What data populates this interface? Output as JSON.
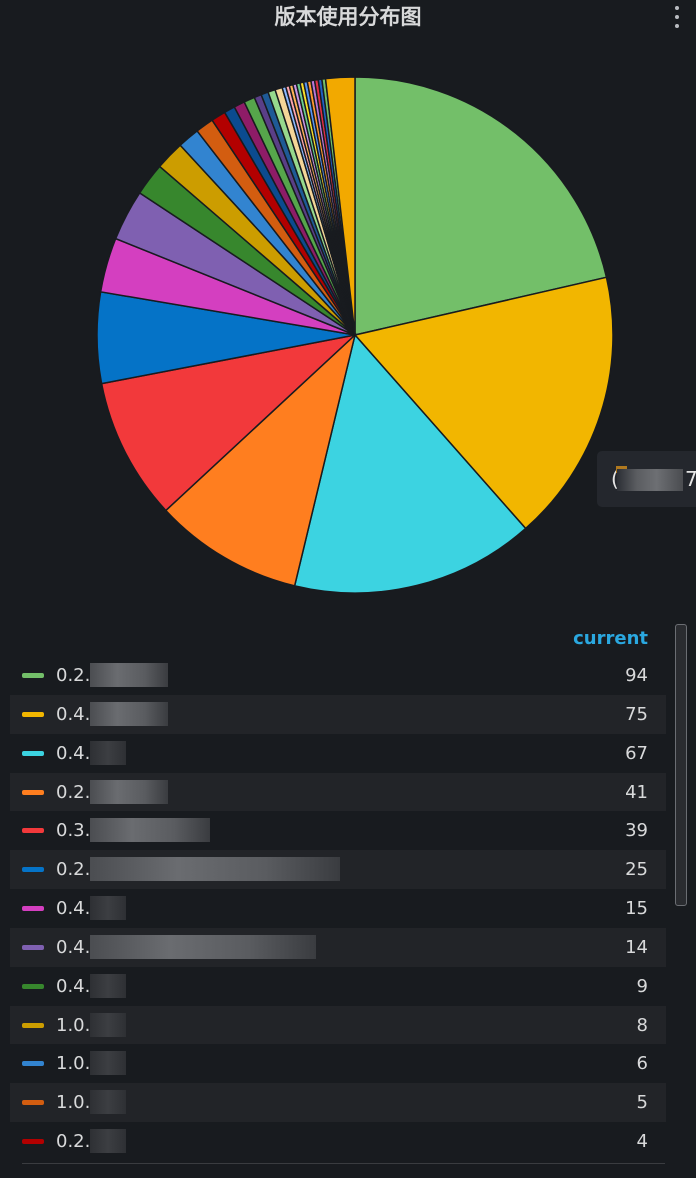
{
  "panel": {
    "title": "版本使用分布图",
    "menu_icon": "vertical-dots-icon"
  },
  "tooltip": {
    "text_start": "(",
    "text_end": "7"
  },
  "legend": {
    "column_header": "current",
    "items": [
      {
        "label": "0.2.",
        "value": "94",
        "color": "#73bf69"
      },
      {
        "label": "0.4.",
        "value": "75",
        "color": "#f2b600"
      },
      {
        "label": "0.4.",
        "value": "67",
        "color": "#3cd3e1"
      },
      {
        "label": "0.2.",
        "value": "41",
        "color": "#ff7e1f"
      },
      {
        "label": "0.3.",
        "value": "39",
        "color": "#f2393b"
      },
      {
        "label": "0.2.",
        "value": "25",
        "color": "#0573c7"
      },
      {
        "label": "0.4.",
        "value": "15",
        "color": "#d43fc0"
      },
      {
        "label": "0.4.",
        "value": "14",
        "color": "#7f60b1"
      },
      {
        "label": "0.4.",
        "value": "9",
        "color": "#37872d"
      },
      {
        "label": "1.0.",
        "value": "8",
        "color": "#cc9d00"
      },
      {
        "label": "1.0.",
        "value": "6",
        "color": "#3284d0"
      },
      {
        "label": "1.0.",
        "value": "5",
        "color": "#d35d10"
      },
      {
        "label": "0.2.",
        "value": "4",
        "color": "#b30000"
      }
    ]
  },
  "chart_data": {
    "type": "pie",
    "title": "版本使用分布图",
    "slices": [
      {
        "label": "0.2.",
        "value": 94,
        "color": "#73bf69"
      },
      {
        "label": "0.4.",
        "value": 75,
        "color": "#f2b600"
      },
      {
        "label": "0.4.",
        "value": 67,
        "color": "#3cd3e1"
      },
      {
        "label": "0.2.",
        "value": 41,
        "color": "#ff7e1f"
      },
      {
        "label": "0.3.",
        "value": 39,
        "color": "#f2393b"
      },
      {
        "label": "0.2.",
        "value": 25,
        "color": "#0573c7"
      },
      {
        "label": "0.4.",
        "value": 15,
        "color": "#d43fc0"
      },
      {
        "label": "0.4.",
        "value": 14,
        "color": "#7f60b1"
      },
      {
        "label": "0.4.",
        "value": 9,
        "color": "#37872d"
      },
      {
        "label": "1.0.",
        "value": 8,
        "color": "#cc9d00"
      },
      {
        "label": "1.0.",
        "value": 6,
        "color": "#3284d0"
      },
      {
        "label": "1.0.",
        "value": 5,
        "color": "#d35d10"
      },
      {
        "label": "0.2.",
        "value": 4,
        "color": "#b30000"
      },
      {
        "value": 3,
        "color": "#0b4b8f"
      },
      {
        "value": 3,
        "color": "#8e1c67"
      },
      {
        "value": 3,
        "color": "#56a64b"
      },
      {
        "value": 2,
        "color": "#5a3f87"
      },
      {
        "value": 2,
        "color": "#1e5a96"
      },
      {
        "value": 2,
        "color": "#96d98d"
      },
      {
        "value": 2,
        "color": "#f4d598"
      },
      {
        "value": 1,
        "color": "#8ab8ff"
      },
      {
        "value": 1,
        "color": "#ffa6b0"
      },
      {
        "value": 1,
        "color": "#ffb357"
      },
      {
        "value": 1,
        "color": "#ca95e5"
      },
      {
        "value": 1,
        "color": "#6ccf8e"
      },
      {
        "value": 1,
        "color": "#fade2a"
      },
      {
        "value": 1,
        "color": "#5794f2"
      },
      {
        "value": 1,
        "color": "#ff9830"
      },
      {
        "value": 1,
        "color": "#b877d9"
      },
      {
        "value": 1,
        "color": "#e02f44"
      },
      {
        "value": 1,
        "color": "#1f60c4"
      },
      {
        "value": 1,
        "color": "#73bf69"
      },
      {
        "value": 8,
        "color": "#f2a900"
      }
    ]
  }
}
